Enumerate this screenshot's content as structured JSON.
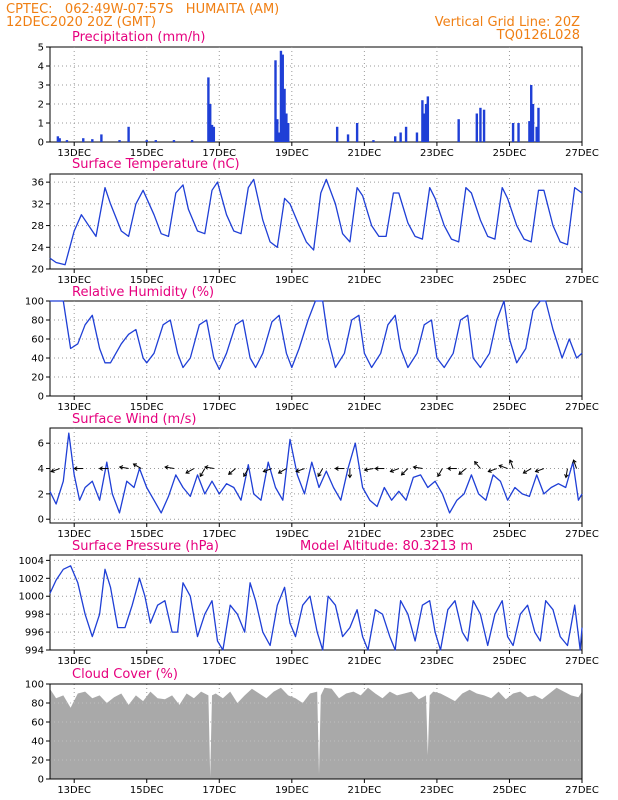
{
  "header": {
    "left_line1": "CPTEC:   062:49W-07:57S   HUMAITA (AM)",
    "left_line2": "12DEC2020 20Z (GMT)",
    "right_line1": "Vertical Grid Line: 20Z",
    "right_line2": "TQ0126L028"
  },
  "colors": {
    "header": "#f07f13",
    "title": "#e6007e",
    "line": "#1f3fd6",
    "bar": "#1f3fd6",
    "cloud": "#a9a9a9",
    "grid": "#9a9a9a"
  },
  "x_axis": {
    "tick_days": [
      13,
      15,
      17,
      19,
      21,
      23,
      25,
      27
    ],
    "tick_labels": [
      "13DEC",
      "15DEC",
      "17DEC",
      "19DEC",
      "21DEC",
      "23DEC",
      "25DEC",
      "27DEC"
    ],
    "range_days": [
      12.333,
      27.0
    ]
  },
  "chart_data": [
    {
      "type": "bar",
      "title": "Precipitation (mm/h)",
      "ylim": [
        0,
        5
      ],
      "yticks": [
        0,
        1,
        2,
        3,
        4,
        5
      ],
      "x_days": [
        12.55,
        12.6,
        12.8,
        13.25,
        13.5,
        13.75,
        14.25,
        14.5,
        15.0,
        15.25,
        15.75,
        16.25,
        16.7,
        16.75,
        16.8,
        16.85,
        18.55,
        18.6,
        18.65,
        18.7,
        18.75,
        18.8,
        18.85,
        18.9,
        20.25,
        20.55,
        20.8,
        21.25,
        21.85,
        22.0,
        22.15,
        22.45,
        22.6,
        22.65,
        22.7,
        22.75,
        23.6,
        24.1,
        24.2,
        24.3,
        25.1,
        25.25,
        25.55,
        25.6,
        25.65,
        25.75,
        25.8
      ],
      "values": [
        0.3,
        0.2,
        0.1,
        0.2,
        0.15,
        0.4,
        0.1,
        0.8,
        0.1,
        0.1,
        0.1,
        0.1,
        3.4,
        2.0,
        0.9,
        0.8,
        4.3,
        1.2,
        0.5,
        4.8,
        4.6,
        2.8,
        1.5,
        1.0,
        0.8,
        0.4,
        1.0,
        0.1,
        0.3,
        0.5,
        0.8,
        0.5,
        2.2,
        1.5,
        2.0,
        2.4,
        1.2,
        1.5,
        1.8,
        1.7,
        1.0,
        1.0,
        1.1,
        3.0,
        2.0,
        0.8,
        1.8
      ]
    },
    {
      "type": "line",
      "title": "Surface Temperature (nC)",
      "ylim": [
        20,
        37.5
      ],
      "yticks": [
        20,
        24,
        28,
        32,
        36
      ],
      "x_days": [
        12.33,
        12.5,
        12.75,
        13.0,
        13.2,
        13.4,
        13.6,
        13.85,
        14.0,
        14.3,
        14.5,
        14.7,
        14.9,
        15.2,
        15.4,
        15.6,
        15.8,
        16.0,
        16.15,
        16.4,
        16.6,
        16.8,
        16.95,
        17.2,
        17.4,
        17.6,
        17.8,
        17.95,
        18.2,
        18.4,
        18.6,
        18.8,
        18.95,
        19.2,
        19.4,
        19.6,
        19.8,
        19.95,
        20.2,
        20.4,
        20.6,
        20.8,
        20.95,
        21.2,
        21.4,
        21.6,
        21.8,
        21.95,
        22.2,
        22.4,
        22.6,
        22.8,
        22.95,
        23.2,
        23.4,
        23.6,
        23.8,
        23.95,
        24.2,
        24.4,
        24.6,
        24.8,
        24.95,
        25.2,
        25.4,
        25.6,
        25.8,
        25.95,
        26.2,
        26.4,
        26.6,
        26.8,
        27.0
      ],
      "values": [
        22.0,
        21.2,
        20.8,
        27.0,
        30.0,
        28.0,
        26.0,
        35.0,
        32.0,
        27.0,
        26.0,
        32.0,
        34.5,
        30.0,
        26.5,
        26.0,
        34.0,
        35.5,
        31.0,
        27.0,
        26.5,
        34.5,
        36.0,
        30.0,
        27.0,
        26.5,
        35.0,
        36.5,
        29.0,
        25.0,
        24.0,
        33.0,
        32.0,
        28.0,
        25.0,
        23.5,
        34.0,
        36.5,
        32.0,
        26.5,
        25.0,
        35.0,
        33.5,
        28.0,
        26.0,
        26.0,
        34.0,
        34.0,
        28.5,
        26.0,
        25.5,
        35.0,
        33.0,
        28.0,
        25.5,
        25.0,
        35.0,
        34.0,
        29.0,
        26.0,
        25.5,
        35.0,
        33.0,
        28.0,
        25.5,
        25.0,
        34.5,
        34.5,
        28.0,
        25.0,
        24.5,
        35.0,
        34.0
      ]
    },
    {
      "type": "line",
      "title": "Relative Humidity (%)",
      "ylim": [
        0,
        100
      ],
      "yticks": [
        0,
        20,
        40,
        60,
        80,
        100
      ],
      "x_days": [
        12.33,
        12.5,
        12.7,
        12.9,
        13.1,
        13.3,
        13.5,
        13.7,
        13.85,
        14.0,
        14.3,
        14.5,
        14.7,
        14.9,
        15.0,
        15.2,
        15.45,
        15.65,
        15.85,
        16.0,
        16.2,
        16.45,
        16.65,
        16.85,
        17.0,
        17.2,
        17.45,
        17.65,
        17.85,
        18.0,
        18.2,
        18.45,
        18.65,
        18.85,
        19.0,
        19.2,
        19.45,
        19.65,
        19.85,
        20.0,
        20.2,
        20.45,
        20.65,
        20.85,
        21.0,
        21.2,
        21.45,
        21.65,
        21.85,
        22.0,
        22.2,
        22.45,
        22.65,
        22.85,
        23.0,
        23.2,
        23.45,
        23.65,
        23.85,
        24.0,
        24.2,
        24.45,
        24.65,
        24.85,
        25.0,
        25.2,
        25.45,
        25.65,
        25.85,
        26.0,
        26.2,
        26.45,
        26.65,
        26.85,
        27.0
      ],
      "values": [
        100,
        100,
        100,
        50,
        55,
        75,
        85,
        50,
        35,
        35,
        55,
        65,
        70,
        40,
        35,
        45,
        75,
        80,
        45,
        30,
        40,
        75,
        80,
        40,
        28,
        45,
        75,
        80,
        40,
        30,
        45,
        78,
        85,
        45,
        30,
        50,
        80,
        100,
        100,
        60,
        30,
        45,
        80,
        85,
        45,
        30,
        45,
        75,
        85,
        50,
        30,
        45,
        75,
        80,
        40,
        30,
        45,
        80,
        85,
        40,
        30,
        45,
        80,
        100,
        60,
        35,
        50,
        90,
        100,
        100,
        70,
        40,
        60,
        40,
        45
      ]
    },
    {
      "type": "line",
      "title": "Surface Wind (m/s)",
      "ylim": [
        -0.3,
        7.2
      ],
      "yticks": [
        0,
        2,
        4,
        6
      ],
      "x_days": [
        12.33,
        12.5,
        12.7,
        12.85,
        13.0,
        13.15,
        13.3,
        13.5,
        13.7,
        13.9,
        14.05,
        14.25,
        14.45,
        14.65,
        14.8,
        15.0,
        15.2,
        15.4,
        15.6,
        15.8,
        16.0,
        16.2,
        16.4,
        16.6,
        16.8,
        17.0,
        17.2,
        17.4,
        17.6,
        17.8,
        17.95,
        18.15,
        18.35,
        18.55,
        18.75,
        18.95,
        19.15,
        19.35,
        19.55,
        19.75,
        19.95,
        20.15,
        20.35,
        20.55,
        20.75,
        20.95,
        21.15,
        21.35,
        21.55,
        21.75,
        21.95,
        22.15,
        22.35,
        22.55,
        22.75,
        22.95,
        23.15,
        23.35,
        23.55,
        23.75,
        23.95,
        24.15,
        24.35,
        24.55,
        24.75,
        24.95,
        25.15,
        25.35,
        25.55,
        25.75,
        25.95,
        26.15,
        26.35,
        26.55,
        26.75,
        26.9,
        27.0
      ],
      "values": [
        2.2,
        1.2,
        3.0,
        6.8,
        3.5,
        1.5,
        2.5,
        3.0,
        1.5,
        4.5,
        2.0,
        0.5,
        3.0,
        2.5,
        4.0,
        2.5,
        1.5,
        0.5,
        1.8,
        3.5,
        2.5,
        1.8,
        3.5,
        2.0,
        3.0,
        2.0,
        2.8,
        2.5,
        1.5,
        4.3,
        2.0,
        1.5,
        4.5,
        2.5,
        1.5,
        6.3,
        3.5,
        2.0,
        4.5,
        2.5,
        3.8,
        2.5,
        1.5,
        4.0,
        6.0,
        2.5,
        1.5,
        1.0,
        2.5,
        1.5,
        2.2,
        1.5,
        3.3,
        3.5,
        2.5,
        3.0,
        2.0,
        0.5,
        1.5,
        2.0,
        3.5,
        2.0,
        1.5,
        3.5,
        3.0,
        1.5,
        2.5,
        2.0,
        1.8,
        3.5,
        2.0,
        2.5,
        2.8,
        2.5,
        4.5,
        1.5,
        2.0
      ],
      "arrow_x_days": [
        12.6,
        13.25,
        13.95,
        14.5,
        14.85,
        15.75,
        16.3,
        16.6,
        16.85,
        17.45,
        17.8,
        18.45,
        18.85,
        19.35,
        19.85,
        20.45,
        20.6,
        21.25,
        21.55,
        21.95,
        22.2,
        22.6,
        23.15,
        23.55,
        23.8,
        24.2,
        24.65,
        24.95,
        25.1,
        25.6,
        25.95,
        26.6,
        26.85
      ],
      "arrow_angles_deg": [
        200,
        180,
        180,
        170,
        150,
        170,
        210,
        240,
        170,
        220,
        240,
        200,
        210,
        200,
        240,
        180,
        270,
        190,
        180,
        200,
        225,
        170,
        240,
        180,
        220,
        130,
        200,
        160,
        110,
        210,
        200,
        260,
        110
      ]
    },
    {
      "type": "line",
      "title": "Surface Pressure (hPa)",
      "annotation": "Model Altitude: 80.3213 m",
      "ylim": [
        994,
        1004.6
      ],
      "yticks": [
        994,
        996,
        998,
        1000,
        1002,
        1004
      ],
      "x_days": [
        12.33,
        12.5,
        12.7,
        12.9,
        13.1,
        13.3,
        13.5,
        13.7,
        13.85,
        14.0,
        14.2,
        14.4,
        14.6,
        14.8,
        14.95,
        15.1,
        15.3,
        15.5,
        15.7,
        15.85,
        16.0,
        16.2,
        16.4,
        16.6,
        16.8,
        16.95,
        17.1,
        17.3,
        17.5,
        17.7,
        17.85,
        18.0,
        18.2,
        18.4,
        18.6,
        18.8,
        18.95,
        19.1,
        19.3,
        19.5,
        19.7,
        19.85,
        20.0,
        20.2,
        20.4,
        20.6,
        20.8,
        20.95,
        21.1,
        21.3,
        21.5,
        21.7,
        21.85,
        22.0,
        22.2,
        22.4,
        22.6,
        22.8,
        22.95,
        23.1,
        23.3,
        23.5,
        23.7,
        23.85,
        24.0,
        24.2,
        24.4,
        24.6,
        24.8,
        24.95,
        25.1,
        25.3,
        25.5,
        25.7,
        25.85,
        26.0,
        26.2,
        26.4,
        26.6,
        26.8,
        26.95,
        27.0
      ],
      "values": [
        1000.3,
        1001.8,
        1003.0,
        1003.4,
        1001.5,
        998.0,
        995.5,
        998.0,
        1003.0,
        1001.0,
        996.5,
        996.5,
        999.0,
        1002.0,
        1000.0,
        997.0,
        999.0,
        999.5,
        996.0,
        996.0,
        1001.5,
        1000.0,
        995.5,
        998.0,
        999.5,
        995.0,
        994.0,
        999.0,
        998.0,
        996.0,
        1001.5,
        999.5,
        996.0,
        994.5,
        999.0,
        1001.0,
        997.0,
        995.5,
        999.0,
        1000.0,
        996.0,
        994.0,
        1000.0,
        999.0,
        995.5,
        996.5,
        998.5,
        995.5,
        994.0,
        998.5,
        998.0,
        995.5,
        994.0,
        999.5,
        998.0,
        995.0,
        999.0,
        999.5,
        996.0,
        994.0,
        998.5,
        999.5,
        996.0,
        995.0,
        999.5,
        998.0,
        994.5,
        998.0,
        999.5,
        995.5,
        994.5,
        998.0,
        999.0,
        996.0,
        995.0,
        999.5,
        998.5,
        995.5,
        994.5,
        999.0,
        994.0,
        996.5
      ]
    },
    {
      "type": "area",
      "title": "Cloud Cover (%)",
      "ylim": [
        0,
        100
      ],
      "yticks": [
        0,
        20,
        40,
        60,
        80,
        100
      ],
      "x_days": [
        12.33,
        12.5,
        12.7,
        12.9,
        13.1,
        13.3,
        13.5,
        13.7,
        13.9,
        14.1,
        14.3,
        14.5,
        14.7,
        14.9,
        15.1,
        15.3,
        15.5,
        15.7,
        15.9,
        16.1,
        16.3,
        16.5,
        16.7,
        16.75,
        16.8,
        16.9,
        17.1,
        17.3,
        17.5,
        17.7,
        17.9,
        18.1,
        18.3,
        18.5,
        18.7,
        18.9,
        19.1,
        19.3,
        19.5,
        19.7,
        19.75,
        19.8,
        19.9,
        20.1,
        20.3,
        20.5,
        20.7,
        20.9,
        21.1,
        21.3,
        21.5,
        21.7,
        21.9,
        22.1,
        22.3,
        22.5,
        22.7,
        22.75,
        22.8,
        22.9,
        23.1,
        23.3,
        23.5,
        23.7,
        23.9,
        24.1,
        24.3,
        24.5,
        24.7,
        24.9,
        25.1,
        25.3,
        25.5,
        25.7,
        25.9,
        26.1,
        26.3,
        26.5,
        26.7,
        26.9,
        27.0
      ],
      "values": [
        95,
        85,
        88,
        75,
        90,
        92,
        85,
        88,
        80,
        86,
        90,
        78,
        88,
        82,
        92,
        85,
        84,
        88,
        78,
        90,
        85,
        92,
        88,
        2,
        88,
        90,
        85,
        92,
        80,
        88,
        95,
        90,
        85,
        92,
        96,
        88,
        85,
        80,
        90,
        92,
        5,
        88,
        96,
        95,
        85,
        90,
        92,
        88,
        96,
        90,
        85,
        92,
        88,
        90,
        92,
        84,
        88,
        25,
        88,
        92,
        90,
        86,
        82,
        90,
        94,
        90,
        88,
        85,
        92,
        84,
        90,
        92,
        86,
        88,
        84,
        90,
        96,
        92,
        88,
        86,
        92
      ]
    }
  ]
}
